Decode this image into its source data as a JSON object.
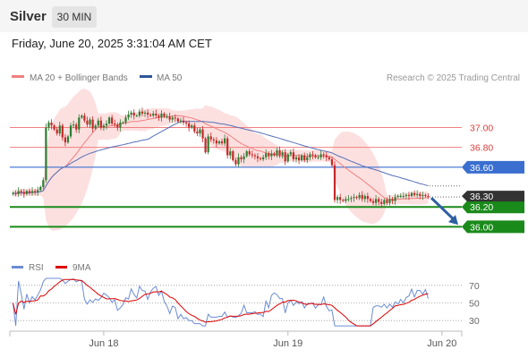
{
  "header": {
    "symbol": "Silver",
    "timeframe": "30 MIN",
    "datetime": "Friday, June 20, 2025 3:31:04 AM CET"
  },
  "legend": {
    "items": [
      {
        "label": "MA 20 + Bollinger Bands",
        "color": "#f08080"
      },
      {
        "label": "MA 50",
        "color": "#2f5597"
      }
    ],
    "credit": "Research © 2025 Trading Central"
  },
  "chart_data": [
    {
      "type": "candlestick",
      "title": "Silver",
      "timeframe": "30 MIN",
      "x_tick_labels": [
        "Jun 18",
        "Jun 19",
        "Jun 20"
      ],
      "y_labels_shown": [
        37.0,
        36.8,
        36.6,
        36.3,
        36.2,
        36.0
      ],
      "ylim": [
        35.76,
        37.5
      ],
      "last_price": 36.3,
      "levels": [
        {
          "value": 37.0,
          "label": "37.00",
          "style": "thin-red"
        },
        {
          "value": 36.8,
          "label": "36.80",
          "style": "thin-red"
        },
        {
          "value": 36.6,
          "label": "36.60",
          "style": "blue"
        },
        {
          "value": 36.2,
          "label": "36.20",
          "style": "green"
        },
        {
          "value": 36.0,
          "label": "36.00",
          "style": "green"
        }
      ],
      "forecast_arrow": {
        "from": 36.29,
        "to": 36.02,
        "direction": "down",
        "color": "#2e5fa0"
      },
      "series_closes": [
        36.34,
        36.33,
        36.36,
        36.35,
        36.33,
        36.36,
        36.34,
        36.36,
        36.35,
        36.37,
        36.4,
        36.47,
        37.0,
        37.05,
        37.02,
        36.98,
        36.94,
        37.02,
        36.9,
        36.85,
        36.91,
        37.02,
        37.03,
        36.98,
        37.1,
        37.12,
        37.07,
        37.03,
        37.08,
        36.99,
        37.02,
        37.07,
        37.0,
        37.02,
        37.04,
        37.1,
        37.04,
        37.03,
        37.0,
        37.05,
        37.05,
        37.1,
        37.13,
        37.15,
        37.12,
        37.12,
        37.16,
        37.14,
        37.15,
        37.13,
        37.12,
        37.14,
        37.12,
        37.1,
        37.14,
        37.11,
        37.11,
        37.08,
        37.1,
        37.09,
        37.06,
        37.07,
        37.05,
        37.04,
        37.0,
        37.02,
        36.96,
        36.94,
        36.98,
        36.89,
        36.75,
        36.91,
        36.88,
        36.87,
        36.84,
        36.86,
        36.84,
        36.89,
        36.72,
        36.76,
        36.67,
        36.63,
        36.7,
        36.68,
        36.71,
        36.76,
        36.73,
        36.72,
        36.71,
        36.69,
        36.68,
        36.7,
        36.74,
        36.71,
        36.74,
        36.72,
        36.77,
        36.72,
        36.75,
        36.66,
        36.73,
        36.75,
        36.68,
        36.7,
        36.67,
        36.72,
        36.67,
        36.7,
        36.73,
        36.72,
        36.7,
        36.7,
        36.73,
        36.72,
        36.7,
        36.68,
        36.62,
        36.27,
        36.3,
        36.27,
        36.26,
        36.28,
        36.28,
        36.29,
        36.3,
        36.29,
        36.32,
        36.28,
        36.31,
        36.28,
        36.26,
        36.24,
        36.28,
        36.25,
        36.23,
        36.27,
        36.24,
        36.28,
        36.26,
        36.3,
        36.31,
        36.31,
        36.31,
        36.32,
        36.31,
        36.34,
        36.32,
        36.33,
        36.31,
        36.32,
        36.31,
        36.3
      ],
      "series_names": [
        "MA 20 + Bollinger Bands",
        "MA 50"
      ]
    },
    {
      "type": "line",
      "title": "RSI",
      "series_names": [
        "RSI",
        "9MA"
      ],
      "y_tick_labels": [
        70,
        50,
        30
      ],
      "ylim": [
        20,
        80
      ]
    }
  ],
  "rsi_legend": {
    "items": [
      {
        "label": "RSI",
        "color": "#6b8cd4"
      },
      {
        "label": "9MA",
        "color": "#dd0000"
      }
    ]
  },
  "colors": {
    "bull": "#2e7d32",
    "bear": "#c62828",
    "band_fill": "#fbd5d5",
    "ma20": "#f08080",
    "ma50": "#5570b8",
    "blue_level": "#3a6fd0",
    "green_level": "#1a8a1a",
    "thin_red": "#f08080",
    "price_tag": "#333333",
    "arrow": "#2e5fa0"
  }
}
